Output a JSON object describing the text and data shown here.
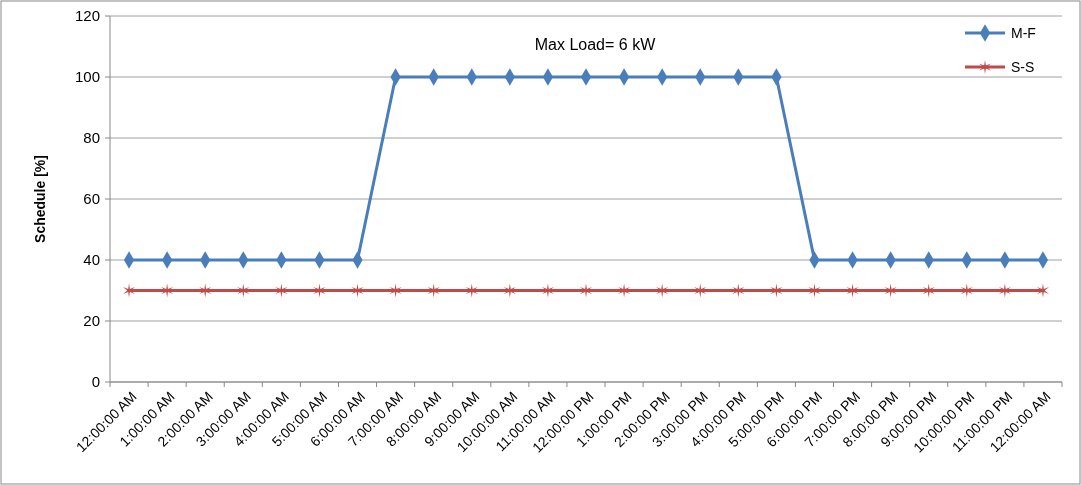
{
  "chart_data": {
    "type": "line",
    "ylabel": "Schedule [%]",
    "annotations": [
      "Max Load= 6 kW"
    ],
    "categories": [
      "12:00:00 AM",
      "1:00:00 AM",
      "2:00:00 AM",
      "3:00:00 AM",
      "4:00:00 AM",
      "5:00:00 AM",
      "6:00:00 AM",
      "7:00:00 AM",
      "8:00:00 AM",
      "9:00:00 AM",
      "10:00:00 AM",
      "11:00:00 AM",
      "12:00:00 PM",
      "1:00:00 PM",
      "2:00:00 PM",
      "3:00:00 PM",
      "4:00:00 PM",
      "5:00:00 PM",
      "6:00:00 PM",
      "7:00:00 PM",
      "8:00:00 PM",
      "9:00:00 PM",
      "10:00:00 PM",
      "11:00:00 PM",
      "12:00:00 AM"
    ],
    "series": [
      {
        "name": "M-F",
        "color": "#4a7ebb",
        "marker": "diamond",
        "values": [
          40,
          40,
          40,
          40,
          40,
          40,
          40,
          100,
          100,
          100,
          100,
          100,
          100,
          100,
          100,
          100,
          100,
          100,
          40,
          40,
          40,
          40,
          40,
          40,
          40
        ]
      },
      {
        "name": "S-S",
        "color": "#be4b48",
        "marker": "cross",
        "values": [
          30,
          30,
          30,
          30,
          30,
          30,
          30,
          30,
          30,
          30,
          30,
          30,
          30,
          30,
          30,
          30,
          30,
          30,
          30,
          30,
          30,
          30,
          30,
          30,
          30
        ]
      }
    ],
    "ylim": [
      0,
      120
    ],
    "yticks": [
      0,
      20,
      40,
      60,
      80,
      100,
      120
    ],
    "grid": "y",
    "legend": "top right",
    "line_style": "solid"
  }
}
